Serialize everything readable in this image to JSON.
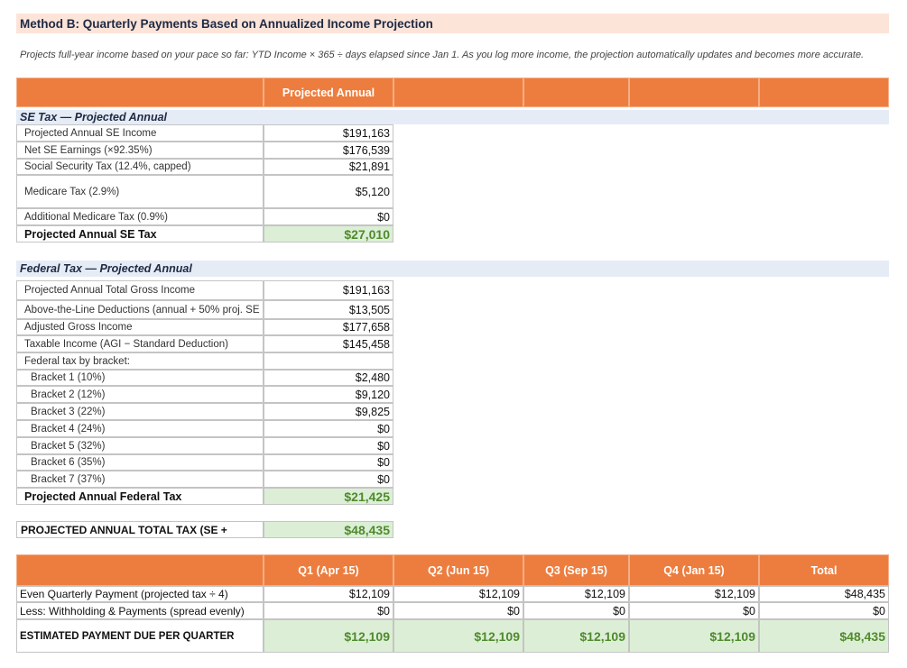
{
  "header": {
    "title": "Method B: Quarterly Payments Based on Annualized Income Projection",
    "description": "Projects full-year income based on your pace so far: YTD Income × 365 ÷ days elapsed since Jan 1. As you log more income, the projection automatically updates and becomes more accurate."
  },
  "projection_table": {
    "column_header": "Projected Annual"
  },
  "se_tax": {
    "title": "SE Tax — Projected Annual",
    "rows": [
      [
        "Projected Annual SE Income",
        "$191,163"
      ],
      [
        "Net SE Earnings (×92.35%)",
        "$176,539"
      ],
      [
        "Social Security Tax (12.4%, capped)",
        "$21,891"
      ],
      [
        "Medicare Tax (2.9%)",
        "$5,120"
      ],
      [
        "Additional Medicare Tax (0.9%)",
        "$0"
      ]
    ],
    "total": [
      "Projected Annual SE Tax",
      "$27,010"
    ]
  },
  "federal_tax": {
    "title": "Federal Tax — Projected Annual",
    "rows": [
      [
        "Projected Annual Total Gross Income",
        "$191,163"
      ],
      [
        "Above-the-Line Deductions (annual + 50% proj. SE",
        "$13,505"
      ],
      [
        "Adjusted Gross Income",
        "$177,658"
      ],
      [
        "Taxable Income (AGI − Standard Deduction)",
        "$145,458"
      ],
      [
        "Federal tax by bracket:"
      ],
      [
        "Bracket 1 (10%)",
        "$2,480"
      ],
      [
        "Bracket 2 (12%)",
        "$9,120"
      ],
      [
        "Bracket 3 (22%)",
        "$9,825"
      ],
      [
        "Bracket 4 (24%)",
        "$0"
      ],
      [
        "Bracket 5 (32%)",
        "$0"
      ],
      [
        "Bracket 6 (35%)",
        "$0"
      ],
      [
        "Bracket 7 (37%)",
        "$0"
      ]
    ],
    "total": [
      "Projected Annual Federal Tax",
      "$21,425"
    ]
  },
  "total_tax": [
    "PROJECTED ANNUAL TOTAL TAX (SE +",
    "$48,435"
  ],
  "quarterly": {
    "columns": [
      "Q1 (Apr 15)",
      "Q2 (Jun 15)",
      "Q3 (Sep 15)",
      "Q4 (Jan 15)",
      "Total"
    ],
    "rows": [
      {
        "label": "Even Quarterly Payment (projected tax ÷ 4)",
        "values": [
          "$12,109",
          "$12,109",
          "$12,109",
          "$12,109",
          "$48,435"
        ]
      },
      {
        "label": "Less: Withholding & Payments (spread evenly)",
        "values": [
          "$0",
          "$0",
          "$0",
          "$0",
          "$0"
        ]
      },
      {
        "label": "ESTIMATED PAYMENT DUE PER QUARTER",
        "values": [
          "$12,109",
          "$12,109",
          "$12,109",
          "$12,109",
          "$48,435"
        ]
      }
    ]
  }
}
